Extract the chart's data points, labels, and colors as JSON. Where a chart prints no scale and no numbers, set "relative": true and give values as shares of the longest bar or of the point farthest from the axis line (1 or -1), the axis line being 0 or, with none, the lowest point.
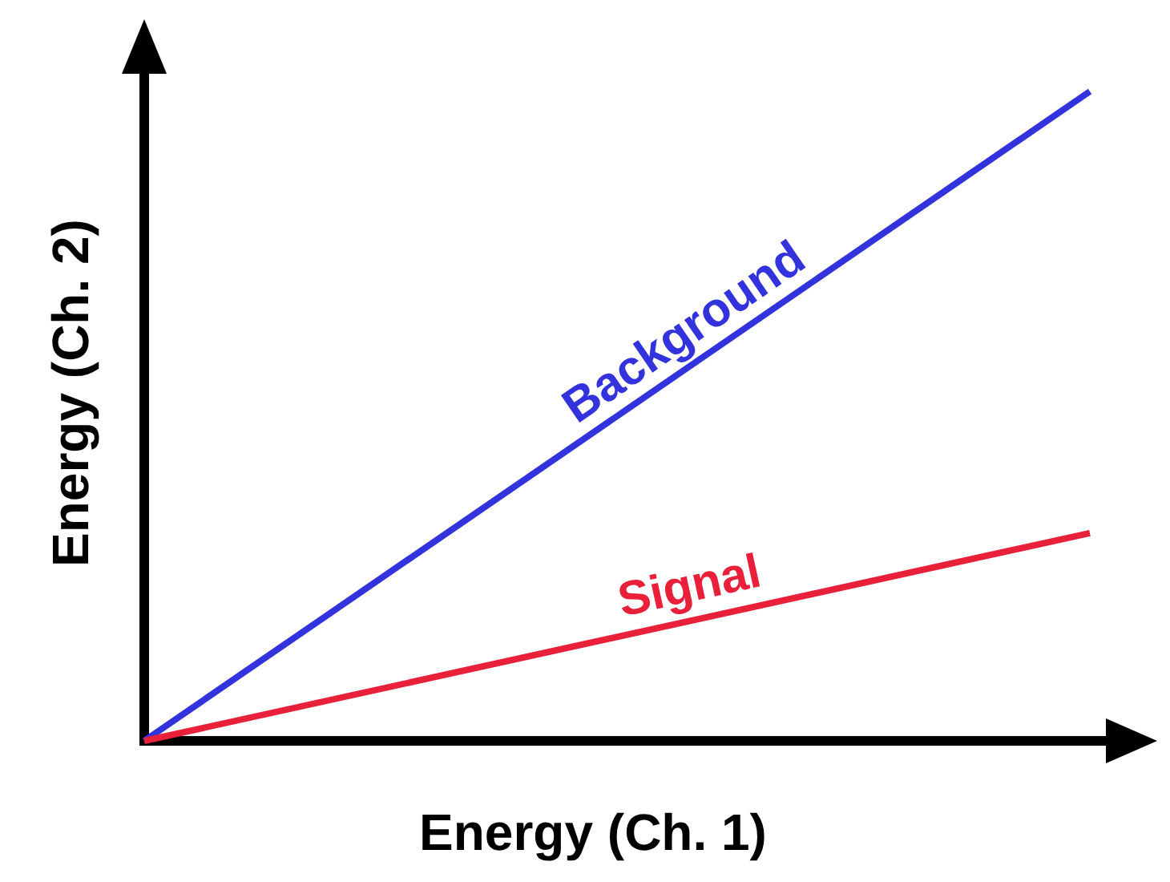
{
  "chart_data": {
    "type": "line",
    "relative": true,
    "xlabel": "Energy (Ch. 1)",
    "ylabel": "Energy (Ch. 2)",
    "categories": [
      null,
      null
    ],
    "legend": false,
    "marker": "none",
    "line_style": "solid",
    "series": [
      {
        "name": "Background",
        "color": "#3333dd",
        "values": [
          0,
          1
        ]
      },
      {
        "name": "Signal",
        "color": "#e8203a",
        "values": [
          0,
          0.32
        ]
      }
    ]
  }
}
